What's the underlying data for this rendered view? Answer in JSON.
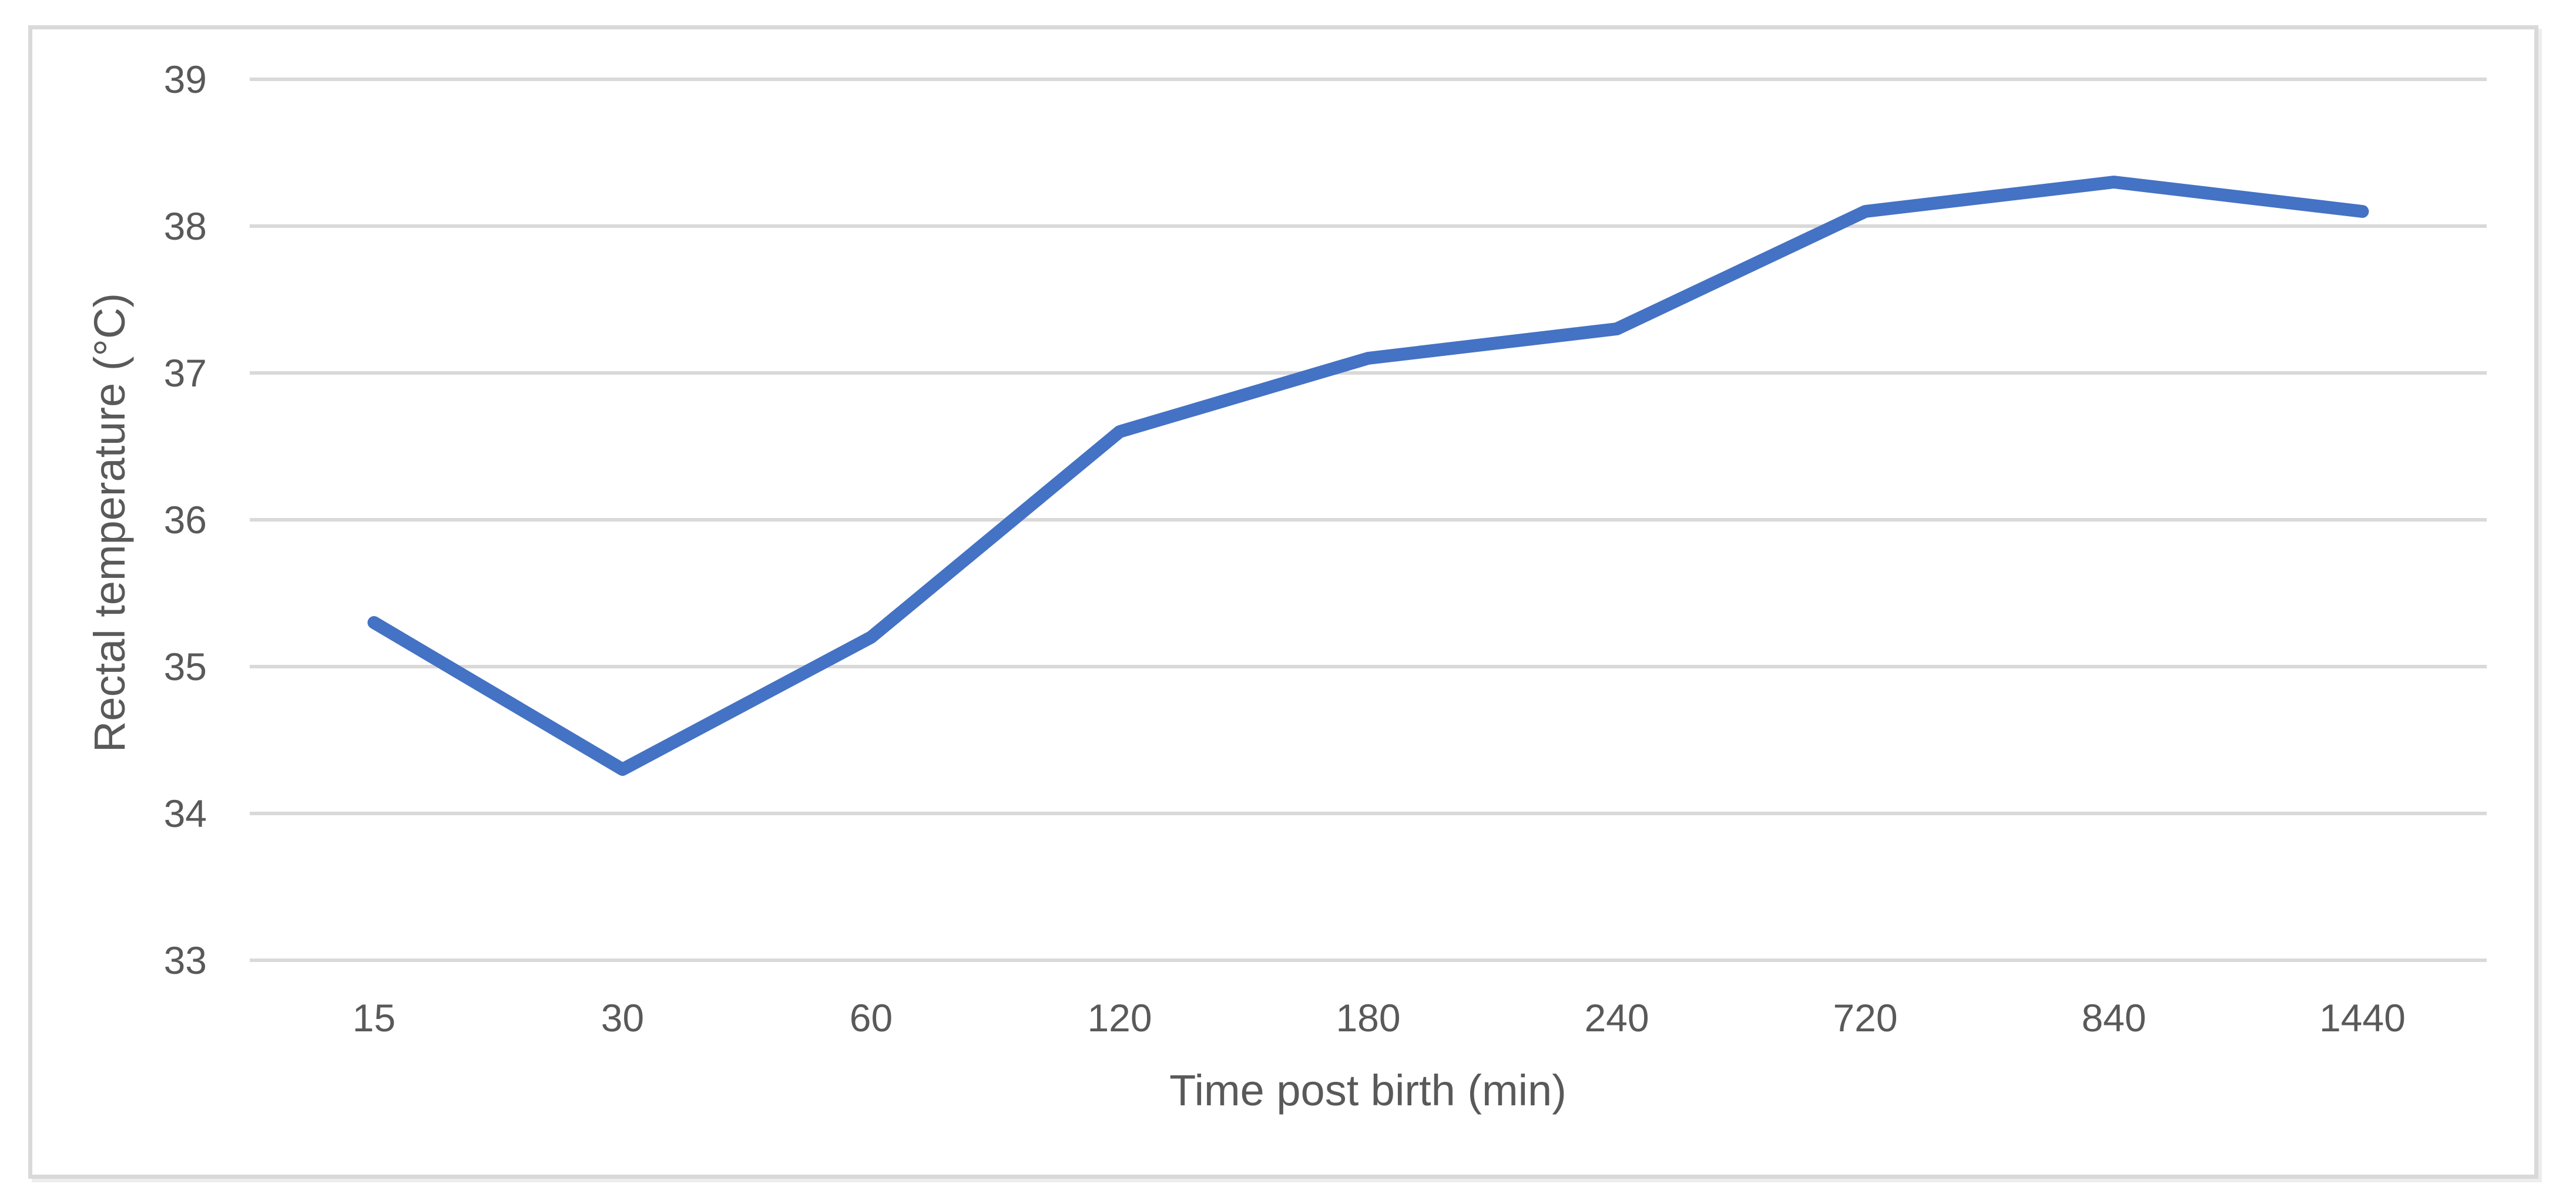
{
  "chart_data": {
    "type": "line",
    "title": "",
    "categories": [
      "15",
      "30",
      "60",
      "120",
      "180",
      "240",
      "720",
      "840",
      "1440"
    ],
    "series": [
      {
        "name": "Rectal temperature",
        "values": [
          35.3,
          34.3,
          35.2,
          36.6,
          37.1,
          37.3,
          38.1,
          38.3,
          38.1
        ]
      }
    ],
    "xlabel": "Time post birth (min)",
    "ylabel": "Rectal temperature (°C)",
    "ylim": [
      33,
      39
    ],
    "yticks": [
      39,
      38,
      37,
      36,
      35,
      34,
      33
    ],
    "grid": "horizontal-only",
    "legend_position": "none",
    "colors": {
      "line": "#4472C4",
      "gridline": "#D9D9D9",
      "text": "#595959",
      "frame_border": "#D9D9D9",
      "background": "#FFFFFF"
    }
  }
}
